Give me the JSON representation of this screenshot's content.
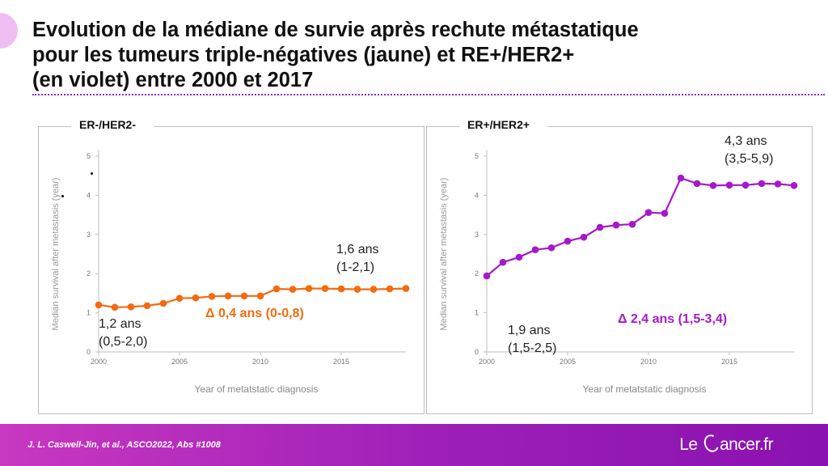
{
  "title": {
    "line1": "Evolution de la médiane de survie après rechute métastatique",
    "line2": "pour les tumeurs triple-négatives (jaune) et RE+/HER2+",
    "line3": "(en violet) entre 2000 et 2017"
  },
  "colors": {
    "left_series": "#f26b0f",
    "right_series": "#a619c9",
    "title_separator": "#8a2be2",
    "footer": "#9c1fb8"
  },
  "chart_data": [
    {
      "type": "line",
      "panel_title": "ER-/HER2-",
      "xlabel": "Year of metatstatic diagnosis",
      "ylabel": "Median survival after metastasis (year)",
      "xlim": [
        2000,
        2019
      ],
      "ylim": [
        0,
        5
      ],
      "x_ticks": [
        "2000",
        "2005",
        "2010",
        "2015"
      ],
      "y_ticks": [
        "0",
        "1",
        "2",
        "3",
        "4",
        "5"
      ],
      "grid": false,
      "series": [
        {
          "x": [
            2000,
            2001,
            2002,
            2003,
            2004,
            2005,
            2006,
            2007,
            2008,
            2009,
            2010,
            2011,
            2012,
            2013,
            2014,
            2015,
            2016,
            2017,
            2018,
            2019
          ],
          "values": [
            1.2,
            1.14,
            1.15,
            1.18,
            1.24,
            1.37,
            1.38,
            1.42,
            1.43,
            1.43,
            1.43,
            1.61,
            1.6,
            1.62,
            1.62,
            1.61,
            1.6,
            1.6,
            1.61,
            1.62
          ]
        }
      ],
      "annotations": {
        "start_value": "1,2 ans",
        "start_ci": "(0,5-2,0)",
        "end_value": "1,6 ans",
        "end_ci": "(1-2,1)",
        "delta": "Δ 0,4 ans (0-0,8)"
      }
    },
    {
      "type": "line",
      "panel_title": "ER+/HER2+",
      "xlabel": "Year of metatstatic diagnosis",
      "ylabel": "Median survival after metastasis (year)",
      "xlim": [
        2000,
        2019
      ],
      "ylim": [
        0,
        5
      ],
      "x_ticks": [
        "2000",
        "2005",
        "2010",
        "2015"
      ],
      "y_ticks": [
        "0",
        "1",
        "2",
        "3",
        "4",
        "5"
      ],
      "grid": false,
      "series": [
        {
          "x": [
            2000,
            2001,
            2002,
            2003,
            2004,
            2005,
            2006,
            2007,
            2008,
            2009,
            2010,
            2011,
            2012,
            2013,
            2014,
            2015,
            2016,
            2017,
            2018,
            2019
          ],
          "values": [
            1.94,
            2.29,
            2.42,
            2.61,
            2.66,
            2.83,
            2.93,
            3.18,
            3.24,
            3.26,
            3.56,
            3.54,
            4.44,
            4.3,
            4.25,
            4.26,
            4.26,
            4.3,
            4.29,
            4.25
          ]
        }
      ],
      "annotations": {
        "start_value": "1,9 ans",
        "start_ci": "(1,5-2,5)",
        "end_value": "4,3 ans",
        "end_ci": "(3,5-5,9)",
        "delta": "Δ 2,4 ans (1,5-3,4)"
      }
    }
  ],
  "footer": {
    "reference": "J. L. Caswell-Jin, et al.,  ASCO2022, Abs #1008",
    "logo_left": "Le ",
    "logo_right": "ancer.fr"
  }
}
